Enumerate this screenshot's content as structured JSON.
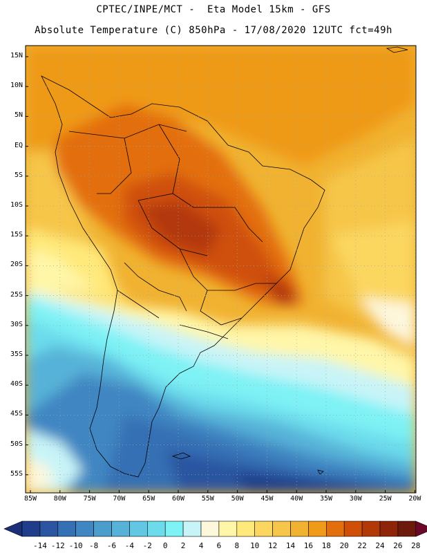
{
  "title": {
    "line1": "CPTEC/INPE/MCT -  Eta Model 15km - GFS",
    "line2": "Absolute Temperature (C) 850hPa - 17/08/2020 12UTC fct=49h"
  },
  "axes": {
    "latitude_labels": [
      "15N",
      "10N",
      "5N",
      "EQ",
      "5S",
      "10S",
      "15S",
      "20S",
      "25S",
      "30S",
      "35S",
      "40S",
      "45S",
      "50S",
      "55S"
    ],
    "longitude_labels": [
      "85W",
      "80W",
      "75W",
      "70W",
      "65W",
      "60W",
      "55W",
      "50W",
      "45W",
      "40W",
      "35W",
      "30W",
      "25W",
      "20W"
    ]
  },
  "colorbar": {
    "labels": [
      "-14",
      "-12",
      "-10",
      "-8",
      "-6",
      "-4",
      "-2",
      "0",
      "2",
      "4",
      "6",
      "8",
      "10",
      "12",
      "14",
      "16",
      "18",
      "20",
      "22",
      "24",
      "26",
      "28"
    ],
    "colors": [
      "#1f3d8a",
      "#2b55a0",
      "#3570b4",
      "#3f86c2",
      "#4b9dcc",
      "#57b2d8",
      "#62c7e2",
      "#6cdcec",
      "#7ef2f5",
      "#c8f4f8",
      "#fdf7dc",
      "#fff6a8",
      "#ffe97a",
      "#fbd760",
      "#f6c64a",
      "#f1b231",
      "#ef9a18",
      "#e36e0c",
      "#cf4f08",
      "#b33807",
      "#8f2508",
      "#6d1a0c"
    ],
    "under_color": "#1a2f78",
    "over_color": "#6a0a28"
  },
  "legend": {
    "units": "C"
  }
}
